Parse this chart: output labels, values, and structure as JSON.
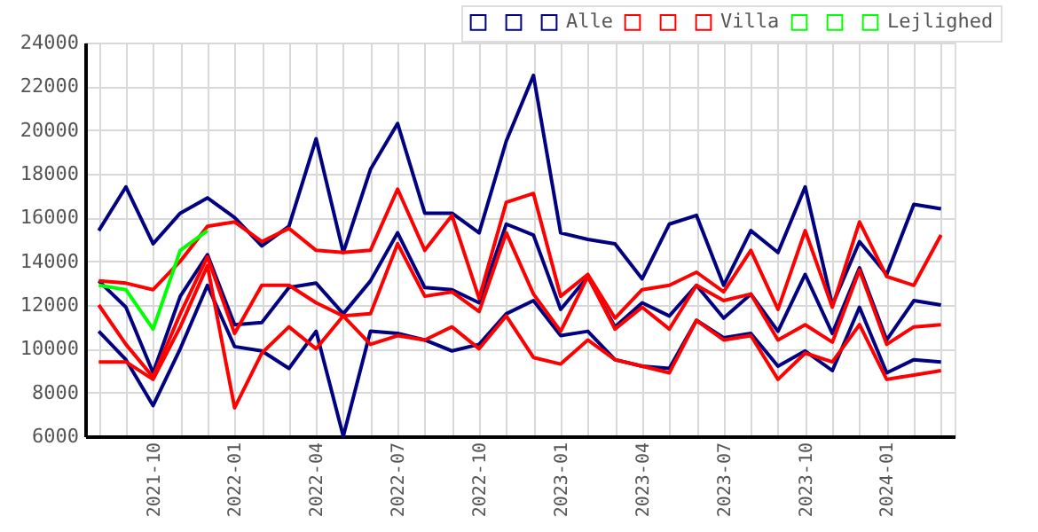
{
  "chart_data": {
    "type": "line",
    "categories": [
      null,
      null,
      "2021-10",
      null,
      null,
      "2022-01",
      null,
      null,
      "2022-04",
      null,
      null,
      "2022-07",
      null,
      null,
      "2022-10",
      null,
      null,
      "2023-01",
      null,
      null,
      "2023-04",
      null,
      null,
      "2023-07",
      null,
      null,
      "2023-10",
      null,
      null,
      "2024-01",
      null,
      null
    ],
    "series": [
      {
        "color": "#000080",
        "values": [
          15400,
          17400,
          14800,
          16200,
          16900,
          16000,
          14700,
          15600,
          19600,
          14400,
          18200,
          20300,
          16200,
          16200,
          15300,
          19500,
          22500,
          15300,
          15000,
          14800,
          13200,
          15700,
          16100,
          12900,
          15400,
          14400,
          17400,
          12000,
          14900,
          13400,
          16600,
          16400
        ]
      },
      {
        "color": "#000080",
        "values": [
          13100,
          11900,
          8900,
          12400,
          14300,
          11100,
          11200,
          12800,
          13000,
          11600,
          13100,
          15300,
          12800,
          12700,
          12100,
          15700,
          15200,
          11800,
          13300,
          11000,
          12100,
          11500,
          12900,
          11400,
          12500,
          10800,
          13400,
          10700,
          13700,
          10400,
          12200,
          12000
        ]
      },
      {
        "name": "Alle",
        "color": "#000080",
        "values": [
          10800,
          9500,
          7400,
          10000,
          12900,
          10100,
          9900,
          9100,
          10800,
          6000,
          10800,
          10700,
          10400,
          9900,
          10200,
          11600,
          12200,
          10600,
          10800,
          9500,
          9200,
          9100,
          11300,
          10500,
          10700,
          9200,
          9900,
          9000,
          11900,
          8900,
          9500,
          9400
        ]
      },
      {
        "color": "#ff0000",
        "values": [
          13100,
          13000,
          12700,
          14000,
          15600,
          15800,
          14900,
          15500,
          14500,
          14400,
          14500,
          17300,
          14500,
          16100,
          12300,
          16700,
          17100,
          12400,
          13400,
          11400,
          12700,
          12900,
          13500,
          12600,
          14500,
          11800,
          15400,
          11900,
          15800,
          13300,
          12900,
          15200
        ]
      },
      {
        "color": "#ff0000",
        "values": [
          12000,
          10200,
          8700,
          11600,
          14200,
          10700,
          12900,
          12900,
          12100,
          11500,
          11600,
          14800,
          12400,
          12600,
          11700,
          15300,
          12500,
          10800,
          13300,
          10900,
          11900,
          10900,
          12900,
          12200,
          12500,
          10400,
          11100,
          10300,
          13600,
          10200,
          11000,
          11100
        ]
      },
      {
        "name": "Villa",
        "color": "#ff0000",
        "values": [
          9400,
          9400,
          8600,
          11000,
          13800,
          7300,
          9800,
          11000,
          10000,
          11500,
          10200,
          10600,
          10400,
          11000,
          10000,
          11500,
          9600,
          9300,
          10400,
          9500,
          9200,
          8900,
          11300,
          10400,
          10600,
          8600,
          9800,
          9400,
          11100,
          8600,
          8800,
          9000
        ]
      },
      {
        "color": "#00ff00",
        "values": [
          null,
          null,
          null,
          null,
          null,
          null,
          null,
          null,
          null,
          null,
          null,
          null,
          null,
          null,
          null,
          null,
          null,
          null,
          null,
          null,
          null,
          null,
          null,
          null,
          null,
          null,
          null,
          null,
          null,
          null,
          null,
          null
        ]
      },
      {
        "color": "#00ff00",
        "values": [
          null,
          null,
          null,
          null,
          null,
          null,
          null,
          null,
          null,
          null,
          null,
          null,
          null,
          null,
          null,
          null,
          null,
          null,
          null,
          null,
          null,
          null,
          null,
          null,
          null,
          null,
          null,
          null,
          null,
          null,
          null,
          null
        ]
      },
      {
        "name": "Lejlighed",
        "color": "#00ff00",
        "values": [
          12900,
          12700,
          10900,
          14500,
          15400,
          null,
          null,
          null,
          null,
          null,
          null,
          null,
          null,
          null,
          null,
          null,
          null,
          null,
          null,
          null,
          null,
          null,
          null,
          null,
          null,
          null,
          null,
          null,
          null,
          null,
          null,
          null
        ]
      }
    ],
    "ylim": [
      6000,
      24000
    ],
    "yticks": [
      6000,
      8000,
      10000,
      12000,
      14000,
      16000,
      18000,
      20000,
      22000,
      24000
    ],
    "grid": true,
    "legend": "top right"
  }
}
